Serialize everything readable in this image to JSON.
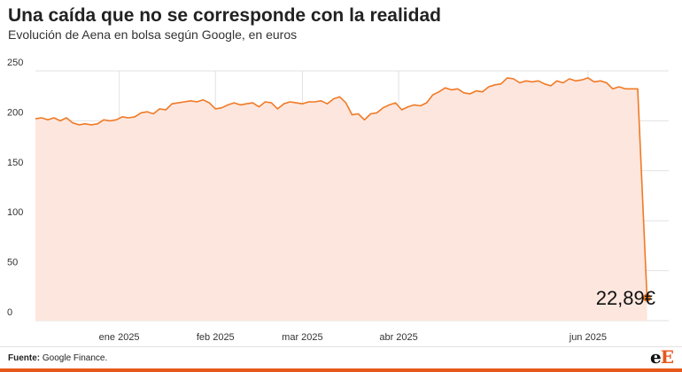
{
  "header": {
    "title": "Una caída que no se corresponde con la realidad",
    "subtitle": "Evolución de Aena en bolsa según Google, en euros"
  },
  "footer": {
    "source_label": "Fuente:",
    "source_text": "Google Finance.",
    "logo_first": "e",
    "logo_second": "E"
  },
  "colors": {
    "line": "#f07a26",
    "area": "#fde6de",
    "grid": "#e2e2e2",
    "accent_bar": "#e8571a"
  },
  "chart_data": {
    "type": "area",
    "title": "Una caída que no se corresponde con la realidad",
    "subtitle": "Evolución de Aena en bolsa según Google, en euros",
    "xlabel": "",
    "ylabel": "",
    "ylim": [
      0,
      250
    ],
    "xlim": [
      "2024-12-05",
      "2025-06-27"
    ],
    "y_ticks": [
      "0",
      "50",
      "100",
      "150",
      "200",
      "250"
    ],
    "x_ticks": [
      {
        "date": "2025-01-01",
        "label": "ene 2025"
      },
      {
        "date": "2025-02-01",
        "label": "feb 2025"
      },
      {
        "date": "2025-03-01",
        "label": "mar 2025"
      },
      {
        "date": "2025-04-01",
        "label": "abr 2025"
      },
      {
        "date": "2025-06-01",
        "label": "jun 2025"
      }
    ],
    "grid": true,
    "legend": "none",
    "last_value_label": "22,89€",
    "series": [
      {
        "points": [
          [
            "2024-12-05",
            202
          ],
          [
            "2024-12-07",
            203
          ],
          [
            "2024-12-09",
            201
          ],
          [
            "2024-12-11",
            203
          ],
          [
            "2024-12-13",
            200
          ],
          [
            "2024-12-15",
            203
          ],
          [
            "2024-12-17",
            198
          ],
          [
            "2024-12-19",
            196
          ],
          [
            "2024-12-21",
            197
          ],
          [
            "2024-12-23",
            196
          ],
          [
            "2024-12-25",
            197
          ],
          [
            "2024-12-27",
            201
          ],
          [
            "2024-12-29",
            200
          ],
          [
            "2024-12-31",
            201
          ],
          [
            "2025-01-02",
            204
          ],
          [
            "2025-01-04",
            203
          ],
          [
            "2025-01-06",
            204
          ],
          [
            "2025-01-08",
            208
          ],
          [
            "2025-01-10",
            209
          ],
          [
            "2025-01-12",
            207
          ],
          [
            "2025-01-14",
            212
          ],
          [
            "2025-01-16",
            211
          ],
          [
            "2025-01-18",
            217
          ],
          [
            "2025-01-20",
            218
          ],
          [
            "2025-01-22",
            219
          ],
          [
            "2025-01-24",
            220
          ],
          [
            "2025-01-26",
            219
          ],
          [
            "2025-01-28",
            221
          ],
          [
            "2025-01-30",
            218
          ],
          [
            "2025-02-01",
            212
          ],
          [
            "2025-02-03",
            213
          ],
          [
            "2025-02-05",
            216
          ],
          [
            "2025-02-07",
            218
          ],
          [
            "2025-02-09",
            216
          ],
          [
            "2025-02-11",
            217
          ],
          [
            "2025-02-13",
            218
          ],
          [
            "2025-02-15",
            214
          ],
          [
            "2025-02-17",
            219
          ],
          [
            "2025-02-19",
            218
          ],
          [
            "2025-02-21",
            212
          ],
          [
            "2025-02-23",
            217
          ],
          [
            "2025-02-25",
            219
          ],
          [
            "2025-02-27",
            218
          ],
          [
            "2025-03-01",
            217
          ],
          [
            "2025-03-03",
            219
          ],
          [
            "2025-03-05",
            219
          ],
          [
            "2025-03-07",
            220
          ],
          [
            "2025-03-09",
            217
          ],
          [
            "2025-03-11",
            222
          ],
          [
            "2025-03-13",
            224
          ],
          [
            "2025-03-15",
            218
          ],
          [
            "2025-03-17",
            206
          ],
          [
            "2025-03-19",
            207
          ],
          [
            "2025-03-21",
            201
          ],
          [
            "2025-03-23",
            207
          ],
          [
            "2025-03-25",
            208
          ],
          [
            "2025-03-27",
            213
          ],
          [
            "2025-03-29",
            216
          ],
          [
            "2025-03-31",
            218
          ],
          [
            "2025-04-02",
            211
          ],
          [
            "2025-04-04",
            214
          ],
          [
            "2025-04-06",
            216
          ],
          [
            "2025-04-08",
            215
          ],
          [
            "2025-04-10",
            218
          ],
          [
            "2025-04-12",
            226
          ],
          [
            "2025-04-14",
            229
          ],
          [
            "2025-04-16",
            233
          ],
          [
            "2025-04-18",
            231
          ],
          [
            "2025-04-20",
            232
          ],
          [
            "2025-04-22",
            228
          ],
          [
            "2025-04-24",
            227
          ],
          [
            "2025-04-26",
            230
          ],
          [
            "2025-04-28",
            229
          ],
          [
            "2025-04-30",
            234
          ],
          [
            "2025-05-02",
            236
          ],
          [
            "2025-05-04",
            237
          ],
          [
            "2025-05-06",
            243
          ],
          [
            "2025-05-08",
            242
          ],
          [
            "2025-05-10",
            238
          ],
          [
            "2025-05-12",
            240
          ],
          [
            "2025-05-14",
            239
          ],
          [
            "2025-05-16",
            240
          ],
          [
            "2025-05-18",
            237
          ],
          [
            "2025-05-20",
            235
          ],
          [
            "2025-05-22",
            240
          ],
          [
            "2025-05-24",
            238
          ],
          [
            "2025-05-26",
            242
          ],
          [
            "2025-05-28",
            240
          ],
          [
            "2025-05-30",
            241
          ],
          [
            "2025-06-01",
            243
          ],
          [
            "2025-06-03",
            239
          ],
          [
            "2025-06-05",
            240
          ],
          [
            "2025-06-07",
            238
          ],
          [
            "2025-06-09",
            232
          ],
          [
            "2025-06-11",
            234
          ],
          [
            "2025-06-13",
            232
          ],
          [
            "2025-06-15",
            232
          ],
          [
            "2025-06-17",
            232
          ],
          [
            "2025-06-20",
            22.89
          ]
        ]
      }
    ]
  }
}
